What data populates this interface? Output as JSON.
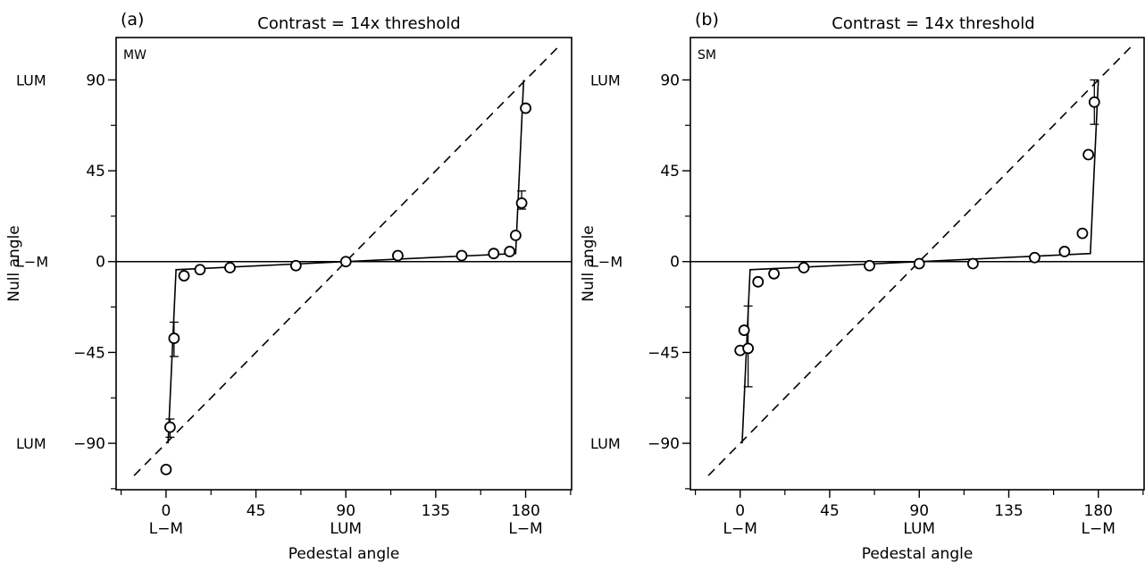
{
  "chart_data": [
    {
      "panel_label": "(a)",
      "title": "Contrast = 14x  threshold",
      "subject": "MW",
      "type": "scatter",
      "xlabel": "Pedestal angle",
      "ylabel": "Null angle",
      "xlim": [
        -25,
        203
      ],
      "ylim": [
        -113,
        111
      ],
      "x_ticks": [
        0,
        45,
        90,
        135,
        180
      ],
      "x_tick_labels": [
        "0",
        "45",
        "90",
        "135",
        "180"
      ],
      "x_tick_sublabels": [
        "L−M",
        "",
        "LUM",
        "",
        "L−M"
      ],
      "y_ticks": [
        -90,
        -45,
        0,
        45,
        90
      ],
      "y_tick_labels": [
        "−90",
        "−45",
        "0",
        "45",
        "90"
      ],
      "y_tick_prefix_labels": [
        "LUM",
        "",
        "L−M",
        "",
        "LUM"
      ],
      "diagonal": {
        "x": [
          -16,
          197
        ],
        "y": [
          -106,
          107
        ]
      },
      "model_curve": {
        "x": [
          1,
          5,
          175,
          175,
          179
        ],
        "y": [
          -90,
          -4,
          4,
          4,
          90
        ]
      },
      "points": [
        {
          "x": 0,
          "y": -103
        },
        {
          "x": 2,
          "y": -82
        },
        {
          "x": 4,
          "y": -38
        },
        {
          "x": 9,
          "y": -7
        },
        {
          "x": 17,
          "y": -4
        },
        {
          "x": 32,
          "y": -3
        },
        {
          "x": 65,
          "y": -2
        },
        {
          "x": 90,
          "y": 0
        },
        {
          "x": 116,
          "y": 3
        },
        {
          "x": 148,
          "y": 3
        },
        {
          "x": 164,
          "y": 4
        },
        {
          "x": 172,
          "y": 5
        },
        {
          "x": 175,
          "y": 13
        },
        {
          "x": 178,
          "y": 29
        },
        {
          "x": 180,
          "y": 76
        }
      ],
      "error_bars": [
        {
          "x": 2,
          "low": -87,
          "high": -78
        },
        {
          "x": 4,
          "low": -47,
          "high": -30
        },
        {
          "x": 178,
          "low": 26,
          "high": 35
        }
      ],
      "grid": false
    },
    {
      "panel_label": "(b)",
      "title": "Contrast = 14x  threshold",
      "subject": "SM",
      "type": "scatter",
      "xlabel": "Pedestal angle",
      "ylabel": "Null angle",
      "xlim": [
        -25,
        203
      ],
      "ylim": [
        -113,
        111
      ],
      "x_ticks": [
        0,
        45,
        90,
        135,
        180
      ],
      "x_tick_labels": [
        "0",
        "45",
        "90",
        "135",
        "180"
      ],
      "x_tick_sublabels": [
        "L−M",
        "",
        "LUM",
        "",
        "L−M"
      ],
      "y_ticks": [
        -90,
        -45,
        0,
        45,
        90
      ],
      "y_tick_labels": [
        "−90",
        "−45",
        "0",
        "45",
        "90"
      ],
      "y_tick_prefix_labels": [
        "LUM",
        "",
        "L−M",
        "",
        "LUM"
      ],
      "diagonal": {
        "x": [
          -16,
          197
        ],
        "y": [
          -106,
          107
        ]
      },
      "model_curve": {
        "x": [
          1,
          5,
          176,
          176,
          180
        ],
        "y": [
          -90,
          -4,
          4,
          4,
          90
        ]
      },
      "points": [
        {
          "x": 0,
          "y": -44
        },
        {
          "x": 2,
          "y": -34
        },
        {
          "x": 4,
          "y": -43
        },
        {
          "x": 9,
          "y": -10
        },
        {
          "x": 17,
          "y": -6
        },
        {
          "x": 32,
          "y": -3
        },
        {
          "x": 65,
          "y": -2
        },
        {
          "x": 90,
          "y": -1
        },
        {
          "x": 117,
          "y": -1
        },
        {
          "x": 148,
          "y": 2
        },
        {
          "x": 163,
          "y": 5
        },
        {
          "x": 172,
          "y": 14
        },
        {
          "x": 175,
          "y": 53
        },
        {
          "x": 178,
          "y": 79
        }
      ],
      "error_bars": [
        {
          "x": 4,
          "low": -62,
          "high": -22
        },
        {
          "x": 178,
          "low": 68,
          "high": 90
        }
      ],
      "grid": false
    }
  ]
}
